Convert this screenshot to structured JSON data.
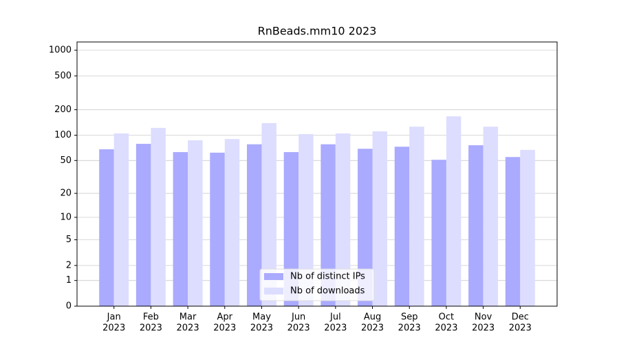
{
  "chart_data": {
    "type": "bar",
    "title": "RnBeads.mm10 2023",
    "categories": [
      [
        "Jan",
        "2023"
      ],
      [
        "Feb",
        "2023"
      ],
      [
        "Mar",
        "2023"
      ],
      [
        "Apr",
        "2023"
      ],
      [
        "May",
        "2023"
      ],
      [
        "Jun",
        "2023"
      ],
      [
        "Jul",
        "2023"
      ],
      [
        "Aug",
        "2023"
      ],
      [
        "Sep",
        "2023"
      ],
      [
        "Oct",
        "2023"
      ],
      [
        "Nov",
        "2023"
      ],
      [
        "Dec",
        "2023"
      ]
    ],
    "series": [
      {
        "name": "Nb of distinct IPs",
        "color": "#aaaaff",
        "values": [
          68,
          79,
          63,
          62,
          78,
          63,
          78,
          69,
          73,
          51,
          76,
          55
        ]
      },
      {
        "name": "Nb of downloads",
        "color": "#ddddff",
        "values": [
          105,
          122,
          87,
          90,
          139,
          103,
          105,
          111,
          126,
          167,
          126,
          67
        ]
      }
    ],
    "yscale": "log1p",
    "ylim": [
      0,
      1250
    ],
    "yticks": [
      0,
      1,
      2,
      5,
      10,
      20,
      50,
      100,
      200,
      500,
      1000
    ],
    "grid": true,
    "legend": "lower center"
  }
}
